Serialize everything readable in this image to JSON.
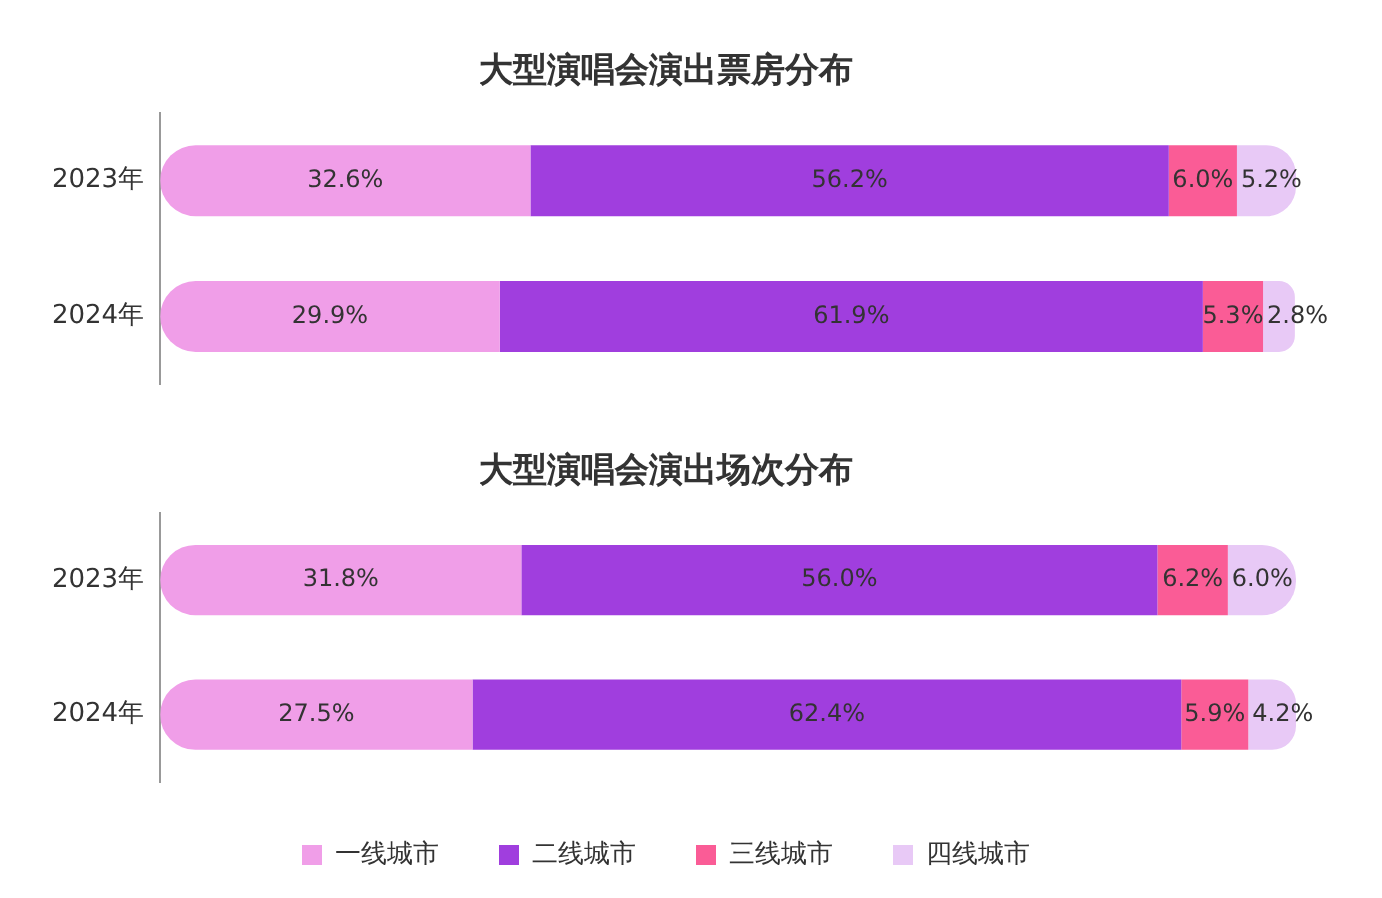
{
  "chart_data": [
    {
      "type": "bar",
      "title": "大型演唱会演出票房分布",
      "orientation": "horizontal",
      "stacked": true,
      "categories": [
        "2023年",
        "2024年"
      ],
      "tick_labels": "y",
      "legend": false,
      "series": [
        {
          "color": "#f09ee8",
          "values": [
            32.6,
            29.9
          ],
          "value_labels": [
            "32.6%",
            "29.9%"
          ]
        },
        {
          "color": "#a03ede",
          "values": [
            56.2,
            61.9
          ],
          "value_labels": [
            "56.2%",
            "61.9%"
          ]
        },
        {
          "color": "#fa5c96",
          "values": [
            6.0,
            5.3
          ],
          "value_labels": [
            "6.0%",
            "5.3%"
          ]
        },
        {
          "color": "#e8c9f6",
          "values": [
            5.2,
            2.8
          ],
          "value_labels": [
            "5.2%",
            "2.8%"
          ]
        }
      ]
    },
    {
      "type": "bar",
      "title": "大型演唱会演出场次分布",
      "orientation": "horizontal",
      "stacked": true,
      "categories": [
        "2023年",
        "2024年"
      ],
      "tick_labels": "y",
      "legend": "bottom",
      "series": [
        {
          "name": "一线城市",
          "color": "#f09ee8",
          "values": [
            31.8,
            27.5
          ],
          "value_labels": [
            "31.8%",
            "27.5%"
          ]
        },
        {
          "name": "二线城市",
          "color": "#a03ede",
          "values": [
            56.0,
            62.4
          ],
          "value_labels": [
            "56.0%",
            "62.4%"
          ]
        },
        {
          "name": "三线城市",
          "color": "#fa5c96",
          "values": [
            6.2,
            5.9
          ],
          "value_labels": [
            "6.2%",
            "5.9%"
          ]
        },
        {
          "name": "四线城市",
          "color": "#e8c9f6",
          "values": [
            6.0,
            4.2
          ],
          "value_labels": [
            "6.0%",
            "4.2%"
          ]
        }
      ]
    }
  ]
}
